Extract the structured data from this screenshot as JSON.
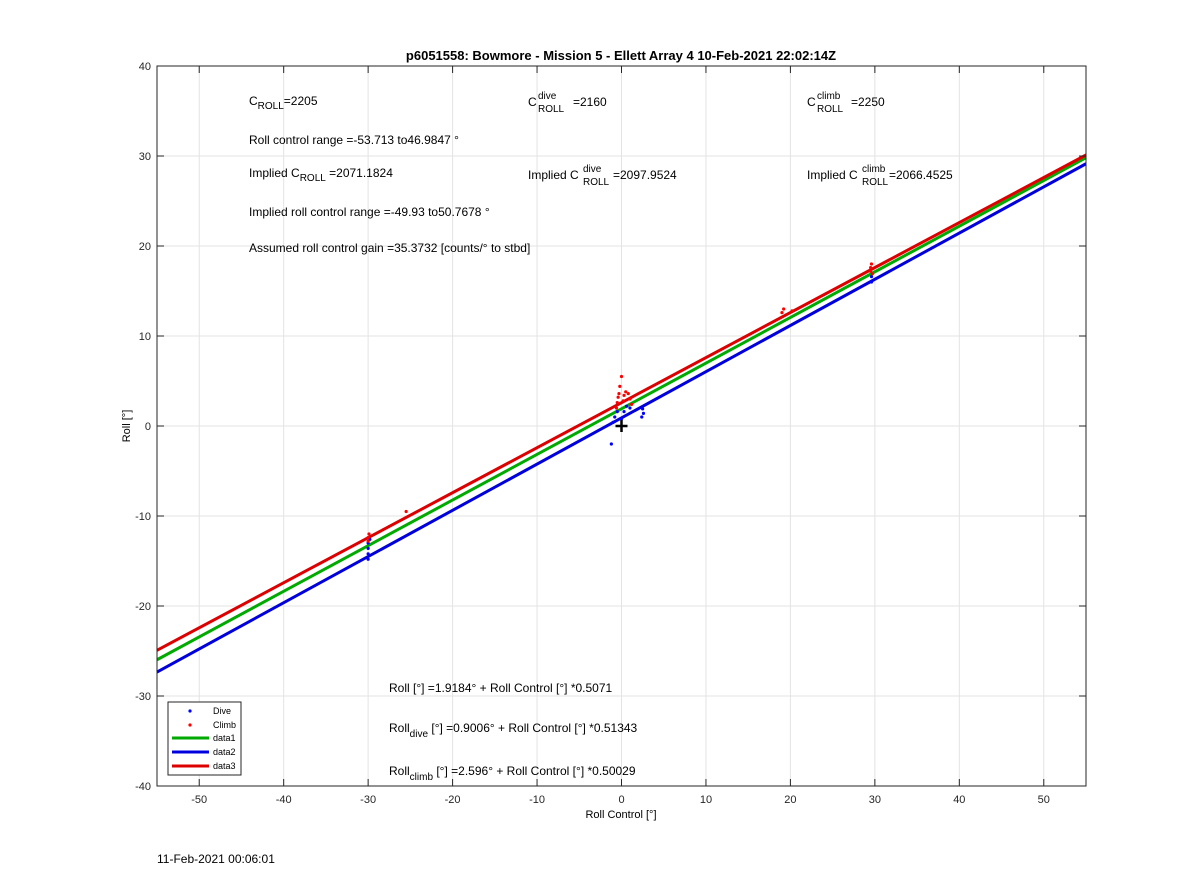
{
  "chart_data": {
    "type": "scatter",
    "title": "p6051558: Bowmore - Mission 5 - Ellett Array 4 10-Feb-2021 22:02:14Z",
    "xlabel": "Roll Control [°]",
    "ylabel": "Roll [°]",
    "xlim": [
      -55,
      55
    ],
    "ylim": [
      -40,
      40
    ],
    "xticks": [
      -50,
      -40,
      -30,
      -20,
      -10,
      0,
      10,
      20,
      30,
      40,
      50
    ],
    "yticks": [
      -40,
      -30,
      -20,
      -10,
      0,
      10,
      20,
      30,
      40
    ],
    "grid": true,
    "legend_position": "bottom-left",
    "colors": {
      "dive": "#0000ff",
      "climb": "#ff0000",
      "data1": "#00aa00",
      "data2": "#0000dd",
      "data3": "#dd0000",
      "marker": "#000000"
    },
    "series": [
      {
        "name": "Dive",
        "kind": "points",
        "color": "#0000ff",
        "points": [
          [
            -30,
            -14.8
          ],
          [
            -30,
            -14.2
          ],
          [
            -30,
            -13.6
          ],
          [
            -30,
            -13.0
          ],
          [
            -29.8,
            -12.6
          ],
          [
            -1.2,
            -2.0
          ],
          [
            -1.0,
            0.4
          ],
          [
            -0.8,
            1.0
          ],
          [
            -0.5,
            1.6
          ],
          [
            0,
            0.8
          ],
          [
            0.3,
            1.6
          ],
          [
            0.6,
            2.2
          ],
          [
            1.0,
            2.0
          ],
          [
            2.4,
            1.0
          ],
          [
            2.6,
            1.4
          ],
          [
            2.5,
            1.9
          ],
          [
            29.6,
            16.0
          ],
          [
            29.6,
            16.6
          ]
        ]
      },
      {
        "name": "Climb",
        "kind": "points",
        "color": "#ff0000",
        "points": [
          [
            -30,
            -12.8
          ],
          [
            -30,
            -12.4
          ],
          [
            -29.9,
            -12.0
          ],
          [
            -25.5,
            -9.5
          ],
          [
            -0.5,
            2.6
          ],
          [
            -0.4,
            3.2
          ],
          [
            -0.3,
            3.6
          ],
          [
            -0.2,
            4.4
          ],
          [
            0,
            5.5
          ],
          [
            0.2,
            2.8
          ],
          [
            0.3,
            3.4
          ],
          [
            0.5,
            3.8
          ],
          [
            0.8,
            3.6
          ],
          [
            1.0,
            3.0
          ],
          [
            1.2,
            2.4
          ],
          [
            -0.6,
            2.0
          ],
          [
            19.0,
            12.6
          ],
          [
            19.2,
            13.0
          ],
          [
            20.2,
            12.8
          ],
          [
            29.5,
            17.2
          ],
          [
            29.5,
            17.6
          ],
          [
            29.6,
            18.0
          ],
          [
            29.7,
            16.9
          ]
        ]
      },
      {
        "name": "data1",
        "kind": "line",
        "color": "#00aa00",
        "intercept": 1.9184,
        "slope": 0.5071
      },
      {
        "name": "data2",
        "kind": "line",
        "color": "#0000dd",
        "intercept": 0.9006,
        "slope": 0.51343
      },
      {
        "name": "data3",
        "kind": "line",
        "color": "#dd0000",
        "intercept": 2.596,
        "slope": 0.50029
      }
    ],
    "origin_marker": [
      0,
      0
    ],
    "annotations": {
      "croll": {
        "base": "C",
        "sub": "ROLL",
        "value": "=2205"
      },
      "croll_dive": {
        "base": "C",
        "sup": "dive",
        "sub": "ROLL",
        "value": "=2160"
      },
      "croll_climb": {
        "base": "C",
        "sup": "climb",
        "sub": "ROLL",
        "value": "=2250"
      },
      "roll_control_range": "Roll control range =-53.713 to46.9847 °",
      "implied_croll": {
        "prefix": "Implied C",
        "sub": "ROLL",
        "value": " =2071.1824"
      },
      "implied_croll_dive": {
        "prefix": "Implied C",
        "sup": "dive",
        "sub": "ROLL",
        "value": " =2097.9524"
      },
      "implied_croll_climb": {
        "prefix": "Implied C",
        "sup": "climb",
        "sub": "ROLL",
        "value": " =2066.4525"
      },
      "implied_range": "Implied roll control range =-49.93 to50.7678 °",
      "gain": "Assumed roll control gain =35.3732 [counts/° to stbd]",
      "fit_all": "Roll [°] =1.9184° + Roll Control [°] *0.5071",
      "fit_dive": {
        "base": "Roll",
        "sub": "dive",
        "rest": " [°] =0.9006° + Roll Control [°] *0.51343"
      },
      "fit_climb": {
        "base": "Roll",
        "sub": "climb",
        "rest": " [°] =2.596° + Roll Control [°] *0.50029"
      }
    }
  },
  "footer": {
    "timestamp": "11-Feb-2021 00:06:01"
  }
}
